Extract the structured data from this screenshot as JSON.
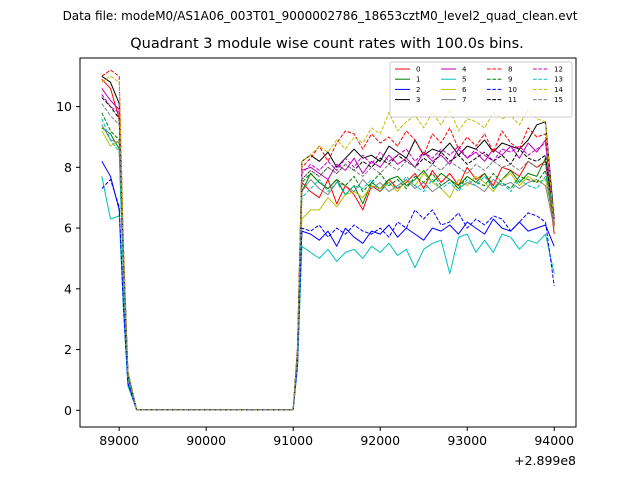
{
  "suptitle": "Data file: modeM0/AS1A06_003T01_9000002786_18653cztM0_level2_quad_clean.evt",
  "chart_data": {
    "type": "line",
    "title": "Quadrant 3 module wise count rates with 100.0s bins.",
    "xlabel": "",
    "ylabel": "",
    "x_offset_label": "+2.899e8",
    "xlim": [
      88550,
      94250
    ],
    "ylim": [
      -0.55,
      11.6
    ],
    "xticks": [
      89000,
      90000,
      91000,
      92000,
      93000,
      94000
    ],
    "xtick_labels": [
      "89000",
      "90000",
      "91000",
      "92000",
      "93000",
      "94000"
    ],
    "yticks": [
      0,
      2,
      4,
      6,
      8,
      10
    ],
    "ytick_labels": [
      "0",
      "2",
      "4",
      "6",
      "8",
      "10"
    ],
    "grid": false,
    "legend_position": "top-right",
    "legend_columns": 4,
    "x": [
      88800,
      88900,
      89000,
      89050,
      89100,
      89200,
      89300,
      89400,
      89500,
      89600,
      89700,
      89800,
      89900,
      90000,
      90100,
      90200,
      90300,
      90400,
      90500,
      90600,
      90700,
      90800,
      90900,
      91000,
      91050,
      91100,
      91200,
      91300,
      91400,
      91500,
      91600,
      91700,
      91800,
      91900,
      92000,
      92100,
      92200,
      92300,
      92400,
      92500,
      92600,
      92700,
      92800,
      92900,
      93000,
      93100,
      93200,
      93300,
      93400,
      93500,
      93600,
      93700,
      93800,
      93900,
      94000
    ],
    "series": [
      {
        "name": "0",
        "color": "#ff0000",
        "dash": "solid",
        "values": [
          10.9,
          10.6,
          9.6,
          5.0,
          1.2,
          0.02,
          0.02,
          0.02,
          0.02,
          0.02,
          0.02,
          0.02,
          0.02,
          0.02,
          0.02,
          0.02,
          0.02,
          0.02,
          0.02,
          0.02,
          0.02,
          0.02,
          0.02,
          0.02,
          2.0,
          7.5,
          7.2,
          7.0,
          7.6,
          6.8,
          7.4,
          7.1,
          6.6,
          7.4,
          7.2,
          7.6,
          7.3,
          7.5,
          7.8,
          7.3,
          7.9,
          7.5,
          7.8,
          7.4,
          8.0,
          7.6,
          7.8,
          7.4,
          8.0,
          7.9,
          7.7,
          8.2,
          8.0,
          8.2,
          5.8
        ]
      },
      {
        "name": "1",
        "color": "#008000",
        "dash": "solid",
        "values": [
          9.3,
          9.1,
          8.6,
          4.4,
          1.1,
          0.02,
          0.02,
          0.02,
          0.02,
          0.02,
          0.02,
          0.02,
          0.02,
          0.02,
          0.02,
          0.02,
          0.02,
          0.02,
          0.02,
          0.02,
          0.02,
          0.02,
          0.02,
          0.02,
          1.9,
          7.2,
          7.8,
          7.5,
          7.3,
          7.6,
          7.1,
          7.4,
          6.8,
          7.5,
          7.3,
          7.6,
          7.7,
          7.4,
          7.6,
          7.9,
          7.5,
          7.8,
          7.6,
          7.4,
          7.7,
          7.5,
          7.8,
          7.3,
          7.6,
          7.9,
          7.5,
          7.8,
          7.7,
          8.3,
          6.3
        ]
      },
      {
        "name": "2",
        "color": "#0000ff",
        "dash": "solid",
        "values": [
          8.2,
          7.7,
          6.6,
          3.4,
          0.9,
          0.02,
          0.02,
          0.02,
          0.02,
          0.02,
          0.02,
          0.02,
          0.02,
          0.02,
          0.02,
          0.02,
          0.02,
          0.02,
          0.02,
          0.02,
          0.02,
          0.02,
          0.02,
          0.02,
          1.5,
          5.9,
          5.8,
          5.6,
          5.9,
          5.4,
          6.0,
          5.7,
          5.5,
          5.9,
          5.8,
          6.1,
          5.7,
          6.0,
          5.8,
          5.6,
          6.0,
          5.9,
          6.1,
          5.8,
          6.2,
          6.0,
          5.8,
          6.3,
          6.0,
          5.9,
          6.2,
          5.9,
          6.0,
          6.1,
          5.4
        ]
      },
      {
        "name": "3",
        "color": "#000000",
        "dash": "solid",
        "values": [
          11.0,
          10.8,
          10.1,
          5.1,
          1.2,
          0.02,
          0.02,
          0.02,
          0.02,
          0.02,
          0.02,
          0.02,
          0.02,
          0.02,
          0.02,
          0.02,
          0.02,
          0.02,
          0.02,
          0.02,
          0.02,
          0.02,
          0.02,
          0.02,
          2.0,
          8.2,
          8.4,
          8.2,
          8.5,
          8.0,
          8.3,
          8.6,
          8.3,
          8.4,
          8.2,
          8.7,
          8.5,
          8.3,
          8.9,
          8.4,
          8.6,
          8.5,
          8.8,
          8.4,
          8.7,
          8.6,
          8.9,
          8.5,
          8.8,
          8.7,
          8.6,
          8.9,
          9.4,
          9.5,
          6.3
        ]
      },
      {
        "name": "4",
        "color": "#bf00bf",
        "dash": "solid",
        "values": [
          10.6,
          10.2,
          9.9,
          4.9,
          1.2,
          0.02,
          0.02,
          0.02,
          0.02,
          0.02,
          0.02,
          0.02,
          0.02,
          0.02,
          0.02,
          0.02,
          0.02,
          0.02,
          0.02,
          0.02,
          0.02,
          0.02,
          0.02,
          0.02,
          1.9,
          7.9,
          8.0,
          7.8,
          7.6,
          8.1,
          7.9,
          8.3,
          7.8,
          8.2,
          8.0,
          8.4,
          8.1,
          8.3,
          8.0,
          8.5,
          8.2,
          8.4,
          8.1,
          8.6,
          8.3,
          8.5,
          8.2,
          8.6,
          8.4,
          8.7,
          8.3,
          8.8,
          8.5,
          8.9,
          6.1
        ]
      },
      {
        "name": "5",
        "color": "#00bfbf",
        "dash": "solid",
        "values": [
          7.7,
          6.3,
          6.4,
          3.3,
          0.8,
          0.02,
          0.02,
          0.02,
          0.02,
          0.02,
          0.02,
          0.02,
          0.02,
          0.02,
          0.02,
          0.02,
          0.02,
          0.02,
          0.02,
          0.02,
          0.02,
          0.02,
          0.02,
          0.02,
          1.4,
          5.4,
          5.2,
          5.0,
          5.3,
          4.9,
          5.2,
          5.3,
          5.0,
          5.4,
          5.2,
          5.5,
          5.1,
          5.3,
          4.7,
          5.3,
          5.5,
          5.6,
          4.5,
          5.7,
          5.8,
          5.2,
          5.6,
          5.2,
          5.8,
          5.7,
          5.3,
          5.6,
          5.5,
          5.8,
          4.5
        ]
      },
      {
        "name": "6",
        "color": "#bfbf00",
        "dash": "solid",
        "values": [
          9.2,
          8.7,
          8.9,
          4.4,
          1.1,
          0.02,
          0.02,
          0.02,
          0.02,
          0.02,
          0.02,
          0.02,
          0.02,
          0.02,
          0.02,
          0.02,
          0.02,
          0.02,
          0.02,
          0.02,
          0.02,
          0.02,
          0.02,
          0.02,
          1.7,
          6.3,
          6.6,
          6.6,
          7.0,
          6.7,
          7.1,
          7.2,
          7.0,
          7.4,
          7.3,
          7.5,
          7.2,
          7.6,
          7.4,
          7.8,
          7.5,
          7.3,
          7.0,
          7.6,
          7.4,
          7.7,
          7.5,
          7.2,
          7.6,
          7.8,
          7.4,
          7.7,
          7.5,
          7.6,
          6.2
        ]
      },
      {
        "name": "7",
        "color": "#808080",
        "dash": "solid",
        "values": [
          9.4,
          8.9,
          8.8,
          4.5,
          1.1,
          0.02,
          0.02,
          0.02,
          0.02,
          0.02,
          0.02,
          0.02,
          0.02,
          0.02,
          0.02,
          0.02,
          0.02,
          0.02,
          0.02,
          0.02,
          0.02,
          0.02,
          0.02,
          0.02,
          1.8,
          7.2,
          7.6,
          7.3,
          7.1,
          7.5,
          7.4,
          7.2,
          7.6,
          7.3,
          7.5,
          7.2,
          7.4,
          7.6,
          7.3,
          7.5,
          7.2,
          7.4,
          7.6,
          7.3,
          7.5,
          7.4,
          7.2,
          7.6,
          7.4,
          7.5,
          7.3,
          7.5,
          7.6,
          7.4,
          6.0
        ]
      },
      {
        "name": "8",
        "color": "#ff0000",
        "dash": "dashed",
        "values": [
          11.0,
          11.2,
          11.0,
          5.4,
          1.3,
          0.02,
          0.02,
          0.02,
          0.02,
          0.02,
          0.02,
          0.02,
          0.02,
          0.02,
          0.02,
          0.02,
          0.02,
          0.02,
          0.02,
          0.02,
          0.02,
          0.02,
          0.02,
          0.02,
          2.1,
          8.0,
          8.3,
          8.7,
          8.2,
          8.8,
          9.2,
          9.1,
          8.6,
          9.1,
          8.8,
          9.0,
          8.7,
          9.2,
          8.9,
          8.4,
          9.1,
          8.8,
          9.3,
          8.6,
          9.0,
          8.7,
          9.1,
          8.5,
          9.2,
          8.8,
          8.6,
          9.3,
          9.0,
          9.1,
          6.1
        ]
      },
      {
        "name": "9",
        "color": "#008000",
        "dash": "dashed",
        "values": [
          9.8,
          9.2,
          8.9,
          4.6,
          1.1,
          0.02,
          0.02,
          0.02,
          0.02,
          0.02,
          0.02,
          0.02,
          0.02,
          0.02,
          0.02,
          0.02,
          0.02,
          0.02,
          0.02,
          0.02,
          0.02,
          0.02,
          0.02,
          0.02,
          1.9,
          7.5,
          7.8,
          7.5,
          7.3,
          7.6,
          7.4,
          7.7,
          7.2,
          7.5,
          7.8,
          7.4,
          7.6,
          7.3,
          7.7,
          7.5,
          7.8,
          7.4,
          7.6,
          7.3,
          7.7,
          7.5,
          7.4,
          7.8,
          7.5,
          7.3,
          7.7,
          7.6,
          7.5,
          7.9,
          6.0
        ]
      },
      {
        "name": "10",
        "color": "#0000ff",
        "dash": "dashed",
        "values": [
          7.3,
          7.6,
          6.7,
          3.4,
          0.9,
          0.02,
          0.02,
          0.02,
          0.02,
          0.02,
          0.02,
          0.02,
          0.02,
          0.02,
          0.02,
          0.02,
          0.02,
          0.02,
          0.02,
          0.02,
          0.02,
          0.02,
          0.02,
          0.02,
          1.5,
          6.0,
          5.9,
          6.1,
          5.7,
          6.0,
          5.8,
          6.1,
          5.9,
          5.8,
          6.0,
          5.7,
          6.2,
          6.0,
          6.6,
          6.3,
          6.6,
          6.1,
          6.2,
          6.5,
          6.0,
          6.3,
          6.1,
          6.4,
          6.3,
          5.9,
          6.2,
          6.5,
          6.4,
          6.2,
          4.1
        ]
      },
      {
        "name": "11",
        "color": "#000000",
        "dash": "dashed",
        "values": [
          10.3,
          10.0,
          9.6,
          4.9,
          1.2,
          0.02,
          0.02,
          0.02,
          0.02,
          0.02,
          0.02,
          0.02,
          0.02,
          0.02,
          0.02,
          0.02,
          0.02,
          0.02,
          0.02,
          0.02,
          0.02,
          0.02,
          0.02,
          0.02,
          1.9,
          7.6,
          7.9,
          7.7,
          8.0,
          7.8,
          8.1,
          7.9,
          8.2,
          8.0,
          8.3,
          8.1,
          8.4,
          8.2,
          8.0,
          8.3,
          8.1,
          8.5,
          8.2,
          8.4,
          8.1,
          8.3,
          8.5,
          8.2,
          8.4,
          8.1,
          8.6,
          8.3,
          8.2,
          8.4,
          6.1
        ]
      },
      {
        "name": "12",
        "color": "#bf00bf",
        "dash": "dashed",
        "values": [
          10.4,
          10.0,
          9.8,
          4.9,
          1.2,
          0.02,
          0.02,
          0.02,
          0.02,
          0.02,
          0.02,
          0.02,
          0.02,
          0.02,
          0.02,
          0.02,
          0.02,
          0.02,
          0.02,
          0.02,
          0.02,
          0.02,
          0.02,
          0.02,
          1.9,
          7.8,
          8.1,
          7.9,
          8.2,
          7.9,
          8.3,
          8.0,
          8.4,
          8.1,
          8.5,
          8.2,
          8.4,
          8.6,
          8.2,
          8.5,
          8.3,
          8.6,
          8.4,
          8.7,
          8.3,
          8.6,
          8.4,
          8.2,
          8.6,
          8.5,
          8.7,
          8.4,
          8.6,
          8.8,
          6.3
        ]
      },
      {
        "name": "13",
        "color": "#00bfbf",
        "dash": "dashed",
        "values": [
          9.6,
          8.9,
          8.5,
          4.3,
          1.1,
          0.02,
          0.02,
          0.02,
          0.02,
          0.02,
          0.02,
          0.02,
          0.02,
          0.02,
          0.02,
          0.02,
          0.02,
          0.02,
          0.02,
          0.02,
          0.02,
          0.02,
          0.02,
          0.02,
          1.8,
          7.0,
          7.3,
          7.6,
          7.2,
          7.5,
          7.1,
          7.4,
          7.3,
          7.6,
          7.2,
          7.5,
          7.3,
          7.7,
          7.4,
          7.2,
          7.6,
          7.3,
          7.5,
          7.2,
          7.6,
          7.4,
          7.7,
          7.3,
          7.5,
          7.2,
          7.6,
          7.4,
          7.3,
          7.7,
          6.6
        ]
      },
      {
        "name": "14",
        "color": "#bfbf00",
        "dash": "dashed",
        "values": [
          10.8,
          11.0,
          10.8,
          5.3,
          1.3,
          0.02,
          0.02,
          0.02,
          0.02,
          0.02,
          0.02,
          0.02,
          0.02,
          0.02,
          0.02,
          0.02,
          0.02,
          0.02,
          0.02,
          0.02,
          0.02,
          0.02,
          0.02,
          0.02,
          2.0,
          8.2,
          8.4,
          8.7,
          8.5,
          8.9,
          8.6,
          9.0,
          8.8,
          9.3,
          9.1,
          9.8,
          9.2,
          9.5,
          9.7,
          9.3,
          9.8,
          9.4,
          9.9,
          9.2,
          9.6,
          9.5,
          9.3,
          9.8,
          9.6,
          9.7,
          9.4,
          9.9,
          9.6,
          9.5,
          6.0
        ]
      },
      {
        "name": "15",
        "color": "#808080",
        "dash": "dashed",
        "values": [
          10.1,
          9.7,
          9.4,
          4.8,
          1.2,
          0.02,
          0.02,
          0.02,
          0.02,
          0.02,
          0.02,
          0.02,
          0.02,
          0.02,
          0.02,
          0.02,
          0.02,
          0.02,
          0.02,
          0.02,
          0.02,
          0.02,
          0.02,
          0.02,
          1.9,
          7.6,
          7.9,
          7.7,
          8.0,
          7.8,
          8.1,
          7.9,
          7.7,
          8.0,
          7.8,
          8.1,
          7.9,
          8.2,
          8.0,
          7.8,
          8.1,
          7.9,
          8.2,
          8.0,
          7.8,
          8.1,
          7.9,
          8.2,
          8.0,
          8.1,
          7.9,
          8.2,
          8.0,
          8.1,
          6.0
        ]
      }
    ]
  }
}
